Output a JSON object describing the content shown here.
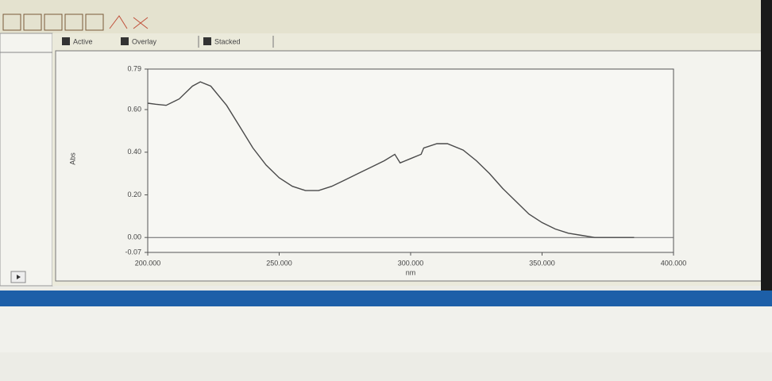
{
  "tabs": [
    "Active",
    "Overlay",
    "Stacked"
  ],
  "chart_data": {
    "type": "line",
    "y_label": "Abs",
    "x_label": "nm",
    "color": "#4a4a4a",
    "x": [
      200,
      203,
      207,
      212,
      217,
      220,
      224,
      230,
      235,
      240,
      245,
      250,
      255,
      260,
      265,
      270,
      275,
      280,
      285,
      290,
      294,
      296,
      300,
      304,
      305,
      310,
      314,
      320,
      325,
      330,
      335,
      340,
      345,
      350,
      355,
      360,
      365,
      370,
      380,
      385
    ],
    "values": [
      0.63,
      0.625,
      0.62,
      0.65,
      0.71,
      0.73,
      0.71,
      0.62,
      0.52,
      0.42,
      0.34,
      0.28,
      0.24,
      0.22,
      0.22,
      0.24,
      0.27,
      0.3,
      0.33,
      0.36,
      0.39,
      0.35,
      0.37,
      0.39,
      0.42,
      0.44,
      0.44,
      0.41,
      0.36,
      0.3,
      0.23,
      0.17,
      0.11,
      0.07,
      0.04,
      0.02,
      0.01,
      0.0,
      0.0,
      0.0
    ],
    "xlim": [
      200,
      400
    ],
    "xticks": [
      {
        "value": 200,
        "label": "200.000"
      },
      {
        "value": 250,
        "label": "250.000"
      },
      {
        "value": 300,
        "label": "300.000"
      },
      {
        "value": 350,
        "label": "350.000"
      },
      {
        "value": 400,
        "label": "400.000"
      }
    ],
    "ylim": [
      -0.07,
      0.79
    ],
    "yticks": [
      {
        "value": -0.07,
        "label": "-0.07"
      },
      {
        "value": 0,
        "label": "0.00"
      },
      {
        "value": 0.2,
        "label": "0.20"
      },
      {
        "value": 0.4,
        "label": "0.40"
      },
      {
        "value": 0.6,
        "label": "0.60"
      },
      {
        "value": 0.79,
        "label": "0.79"
      }
    ],
    "zero_line": true
  }
}
